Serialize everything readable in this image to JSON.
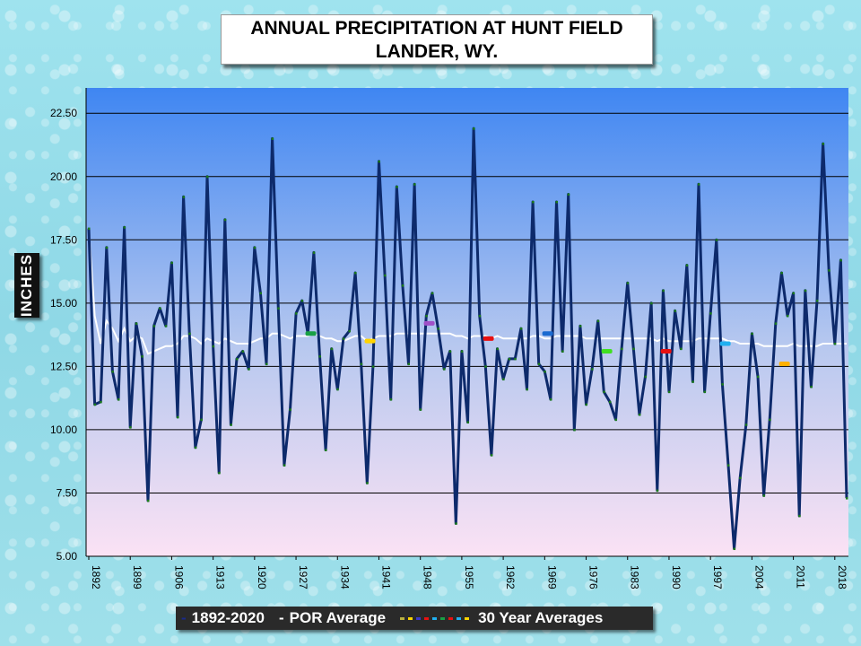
{
  "title": {
    "line1": "ANNUAL PRECIPITATION AT HUNT FIELD",
    "line2": "LANDER, WY."
  },
  "legend": {
    "series": "1892-2020",
    "por": "POR Average",
    "thirty": "30 Year Averages"
  },
  "chart_data": {
    "type": "line",
    "ylabel": "INCHES",
    "ylim": [
      5.0,
      23.5
    ],
    "yticks": [
      "5.00",
      "7.50",
      "10.00",
      "12.50",
      "15.00",
      "17.50",
      "20.00",
      "22.50"
    ],
    "xlim": [
      1892,
      2020
    ],
    "xticks": [
      "1892",
      "1899",
      "1906",
      "1913",
      "1920",
      "1927",
      "1934",
      "1941",
      "1948",
      "1955",
      "1962",
      "1969",
      "1976",
      "1983",
      "1990",
      "1997",
      "2004",
      "2011",
      "2018"
    ],
    "grid": true,
    "colors": {
      "series": "#0d2a6b",
      "marker": "#1b7a1b",
      "por": "#ffffff"
    },
    "series": [
      {
        "name": "1892-2020",
        "x_start": 1892,
        "values": [
          17.95,
          11.0,
          11.1,
          17.2,
          12.3,
          11.2,
          18.0,
          10.1,
          14.2,
          12.9,
          7.2,
          14.1,
          14.8,
          14.1,
          16.6,
          10.5,
          19.2,
          13.8,
          9.3,
          10.4,
          20.0,
          13.3,
          8.3,
          18.3,
          10.2,
          12.8,
          13.1,
          12.4,
          17.2,
          15.4,
          12.6,
          21.5,
          14.8,
          8.6,
          10.8,
          14.6,
          15.1,
          13.8,
          17.0,
          12.9,
          9.2,
          13.2,
          11.6,
          13.6,
          13.9,
          16.2,
          12.6,
          7.9,
          12.5,
          20.6,
          16.1,
          11.2,
          19.6,
          15.7,
          12.6,
          19.7,
          10.8,
          14.5,
          15.4,
          14.0,
          12.4,
          13.1,
          6.3,
          13.1,
          10.3,
          21.9,
          14.5,
          12.5,
          9.0,
          13.2,
          12.0,
          12.8,
          12.8,
          14.0,
          11.6,
          19.0,
          12.6,
          12.3,
          11.2,
          19.0,
          13.1,
          19.3,
          10.0,
          14.1,
          11.0,
          12.4,
          14.3,
          11.5,
          11.1,
          10.4,
          13.2,
          15.8,
          13.2,
          10.6,
          12.1,
          15.0,
          7.6,
          15.5,
          11.5,
          14.7,
          13.2,
          16.5,
          11.9,
          19.7,
          11.5,
          14.6,
          17.5,
          11.8,
          8.6,
          5.3,
          8.1,
          10.2,
          13.8,
          12.1,
          7.4,
          10.4,
          14.2,
          16.2,
          14.5,
          15.4,
          6.6,
          15.5,
          11.7,
          15.1,
          21.3,
          16.3,
          13.4,
          16.7,
          7.3
        ]
      },
      {
        "name": "POR Average",
        "x_start": 1892,
        "values": [
          17.95,
          14.5,
          13.4,
          14.3,
          14.0,
          13.5,
          14.0,
          13.5,
          13.7,
          13.6,
          13.0,
          13.1,
          13.2,
          13.3,
          13.3,
          13.4,
          13.7,
          13.7,
          13.6,
          13.4,
          13.6,
          13.5,
          13.4,
          13.6,
          13.5,
          13.4,
          13.4,
          13.4,
          13.5,
          13.6,
          13.6,
          13.8,
          13.8,
          13.7,
          13.6,
          13.7,
          13.7,
          13.7,
          13.8,
          13.7,
          13.6,
          13.6,
          13.5,
          13.5,
          13.6,
          13.7,
          13.7,
          13.5,
          13.6,
          13.7,
          13.7,
          13.7,
          13.8,
          13.8,
          13.8,
          13.8,
          13.8,
          13.8,
          13.8,
          13.8,
          13.8,
          13.8,
          13.7,
          13.7,
          13.6,
          13.7,
          13.7,
          13.7,
          13.6,
          13.7,
          13.6,
          13.6,
          13.6,
          13.6,
          13.6,
          13.7,
          13.7,
          13.6,
          13.6,
          13.7,
          13.7,
          13.7,
          13.7,
          13.7,
          13.6,
          13.6,
          13.6,
          13.6,
          13.6,
          13.6,
          13.6,
          13.6,
          13.6,
          13.6,
          13.6,
          13.6,
          13.5,
          13.6,
          13.5,
          13.5,
          13.5,
          13.5,
          13.5,
          13.6,
          13.6,
          13.6,
          13.6,
          13.6,
          13.5,
          13.5,
          13.4,
          13.4,
          13.4,
          13.4,
          13.3,
          13.3,
          13.3,
          13.3,
          13.3,
          13.4,
          13.3,
          13.3,
          13.3,
          13.3,
          13.4,
          13.4,
          13.4,
          13.4,
          13.4
        ]
      }
    ],
    "thirty_year_averages": [
      {
        "x": 1929.5,
        "y": 13.8,
        "color": "#18a045"
      },
      {
        "x": 1939.5,
        "y": 13.5,
        "color": "#ffd400"
      },
      {
        "x": 1949.5,
        "y": 14.2,
        "color": "#a050c8"
      },
      {
        "x": 1959.5,
        "y": 13.6,
        "color": "#e81010"
      },
      {
        "x": 1969.5,
        "y": 13.8,
        "color": "#1a6ad0"
      },
      {
        "x": 1979.5,
        "y": 13.1,
        "color": "#40e020"
      },
      {
        "x": 1989.5,
        "y": 13.1,
        "color": "#e81010"
      },
      {
        "x": 1999.5,
        "y": 13.4,
        "color": "#20b0f0"
      },
      {
        "x": 2009.5,
        "y": 12.6,
        "color": "#ffb000"
      }
    ],
    "legend_dot_colors": [
      "#b8b040",
      "#ffd400",
      "#3a3acc",
      "#e81010",
      "#20b0f0",
      "#18a045",
      "#e81010",
      "#20b0f0",
      "#ffd400"
    ]
  }
}
